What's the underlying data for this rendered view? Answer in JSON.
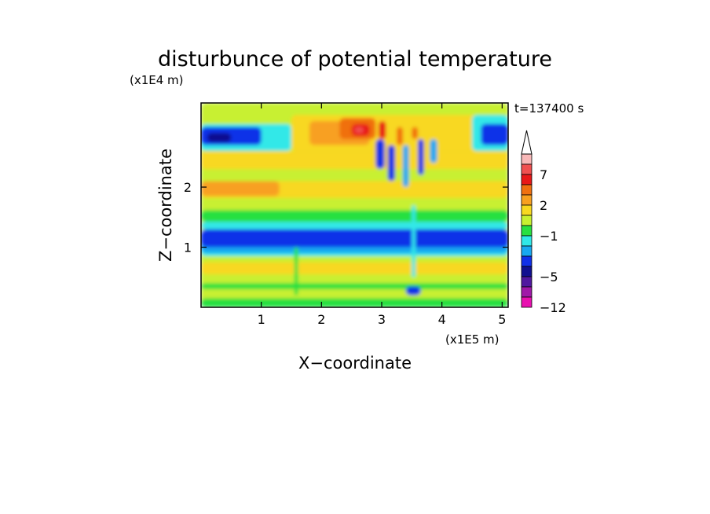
{
  "chart_data": {
    "type": "heatmap",
    "title": "disturbunce of potential temperature",
    "time_label": "t=137400 s",
    "xlabel": "X−coordinate",
    "ylabel": "Z−coordinate",
    "x_unit": "(x1E5 m)",
    "y_unit": "(x1E4 m)",
    "xlim": [
      0,
      5.1
    ],
    "ylim": [
      0,
      3.4
    ],
    "x_ticks": [
      1,
      2,
      3,
      4,
      5
    ],
    "y_ticks": [
      1,
      2
    ],
    "x_tick_labels": [
      "1",
      "2",
      "3",
      "4",
      "5"
    ],
    "y_tick_labels": [
      "1",
      "2"
    ],
    "colorbar": {
      "extend": "max",
      "labels": [
        {
          "value": 7,
          "text": "7"
        },
        {
          "value": 2,
          "text": "2"
        },
        {
          "value": -1,
          "text": "−1"
        },
        {
          "value": -5,
          "text": "−5"
        },
        {
          "value": -12,
          "text": "−12"
        }
      ],
      "levels": [
        {
          "lo": 9.5,
          "hi": 12,
          "color": "#f8b8b8"
        },
        {
          "lo": 7,
          "hi": 9.5,
          "color": "#f05050"
        },
        {
          "lo": 5,
          "hi": 7,
          "color": "#e81818"
        },
        {
          "lo": 3,
          "hi": 5,
          "color": "#f07010"
        },
        {
          "lo": 2,
          "hi": 3,
          "color": "#f8a020"
        },
        {
          "lo": 1,
          "hi": 2,
          "color": "#f8d820"
        },
        {
          "lo": 0,
          "hi": 1,
          "color": "#c8f030"
        },
        {
          "lo": -1,
          "hi": 0,
          "color": "#28e040"
        },
        {
          "lo": -2,
          "hi": -1,
          "color": "#30e8e8"
        },
        {
          "lo": -3,
          "hi": -2,
          "color": "#18a8f0"
        },
        {
          "lo": -4,
          "hi": -3,
          "color": "#1030e8"
        },
        {
          "lo": -5,
          "hi": -4,
          "color": "#101090"
        },
        {
          "lo": -7,
          "hi": -5,
          "color": "#5018a0"
        },
        {
          "lo": -9,
          "hi": -7,
          "color": "#a018a8"
        },
        {
          "lo": -12,
          "hi": -9,
          "color": "#e810b0"
        }
      ]
    },
    "layers": [
      {
        "x": 0.0,
        "y": 0.0,
        "w": 5.1,
        "h": 3.4,
        "value": 0.5
      },
      {
        "x": 0.0,
        "y": 0.0,
        "w": 5.1,
        "h": 0.15,
        "value": -0.5
      },
      {
        "x": 0.0,
        "y": 0.45,
        "w": 5.1,
        "h": 0.4,
        "value": 0.5
      },
      {
        "x": 0.0,
        "y": 0.55,
        "w": 5.1,
        "h": 0.2,
        "value": 1.5
      },
      {
        "x": 0.0,
        "y": 0.85,
        "w": 5.1,
        "h": 0.3,
        "value": -1.5
      },
      {
        "x": 0.0,
        "y": 0.9,
        "w": 5.1,
        "h": 0.2,
        "value": -2.5
      },
      {
        "x": 0.0,
        "y": 1.0,
        "w": 5.1,
        "h": 0.3,
        "value": -3.5
      },
      {
        "x": 0.0,
        "y": 1.3,
        "w": 5.1,
        "h": 0.12,
        "value": -1.5
      },
      {
        "x": 0.0,
        "y": 1.42,
        "w": 5.1,
        "h": 0.2,
        "value": -0.5
      },
      {
        "x": 0.0,
        "y": 1.62,
        "w": 5.1,
        "h": 0.2,
        "value": 0.5
      },
      {
        "x": 0.0,
        "y": 1.82,
        "w": 5.1,
        "h": 0.28,
        "value": 1.5
      },
      {
        "x": 0.0,
        "y": 1.85,
        "w": 1.3,
        "h": 0.25,
        "value": 2.5
      },
      {
        "x": 0.0,
        "y": 2.1,
        "w": 5.1,
        "h": 0.2,
        "value": 0.5
      },
      {
        "x": 0.0,
        "y": 2.3,
        "w": 5.1,
        "h": 0.3,
        "value": 1.5
      },
      {
        "x": 0.0,
        "y": 2.6,
        "w": 1.5,
        "h": 0.45,
        "value": -1.5
      },
      {
        "x": 0.0,
        "y": 2.7,
        "w": 1.0,
        "h": 0.3,
        "value": -3.5
      },
      {
        "x": 0.1,
        "y": 2.75,
        "w": 0.4,
        "h": 0.15,
        "value": -4.5
      },
      {
        "x": 1.5,
        "y": 2.6,
        "w": 3.6,
        "h": 0.6,
        "value": 1.5
      },
      {
        "x": 1.8,
        "y": 2.7,
        "w": 1.0,
        "h": 0.4,
        "value": 2.5
      },
      {
        "x": 2.3,
        "y": 2.8,
        "w": 0.6,
        "h": 0.35,
        "value": 4
      },
      {
        "x": 2.5,
        "y": 2.85,
        "w": 0.3,
        "h": 0.2,
        "value": 6
      },
      {
        "x": 2.55,
        "y": 2.9,
        "w": 0.15,
        "h": 0.1,
        "value": 8
      },
      {
        "x": 4.5,
        "y": 2.6,
        "w": 0.6,
        "h": 0.6,
        "value": -1.5
      },
      {
        "x": 4.65,
        "y": 2.7,
        "w": 0.45,
        "h": 0.35,
        "value": -3.5
      },
      {
        "x": 2.9,
        "y": 2.3,
        "w": 0.15,
        "h": 0.5,
        "value": -3.5
      },
      {
        "x": 3.1,
        "y": 2.1,
        "w": 0.12,
        "h": 0.6,
        "value": -3.5
      },
      {
        "x": 3.35,
        "y": 2.0,
        "w": 0.1,
        "h": 0.7,
        "value": -2.5
      },
      {
        "x": 3.6,
        "y": 2.2,
        "w": 0.1,
        "h": 0.6,
        "value": -3.5
      },
      {
        "x": 3.8,
        "y": 2.4,
        "w": 0.12,
        "h": 0.4,
        "value": -2.5
      },
      {
        "x": 2.95,
        "y": 2.8,
        "w": 0.12,
        "h": 0.3,
        "value": 5
      },
      {
        "x": 3.25,
        "y": 2.7,
        "w": 0.1,
        "h": 0.3,
        "value": 4
      },
      {
        "x": 3.5,
        "y": 2.8,
        "w": 0.1,
        "h": 0.2,
        "value": 3.5
      },
      {
        "x": 0.0,
        "y": 0.3,
        "w": 5.1,
        "h": 0.1,
        "value": -0.5
      },
      {
        "x": 3.4,
        "y": 0.2,
        "w": 0.25,
        "h": 0.15,
        "value": -3.5
      },
      {
        "x": 3.5,
        "y": 0.5,
        "w": 0.06,
        "h": 1.2,
        "value": -1.5
      },
      {
        "x": 1.55,
        "y": 0.2,
        "w": 0.06,
        "h": 0.8,
        "value": -0.5
      }
    ]
  }
}
